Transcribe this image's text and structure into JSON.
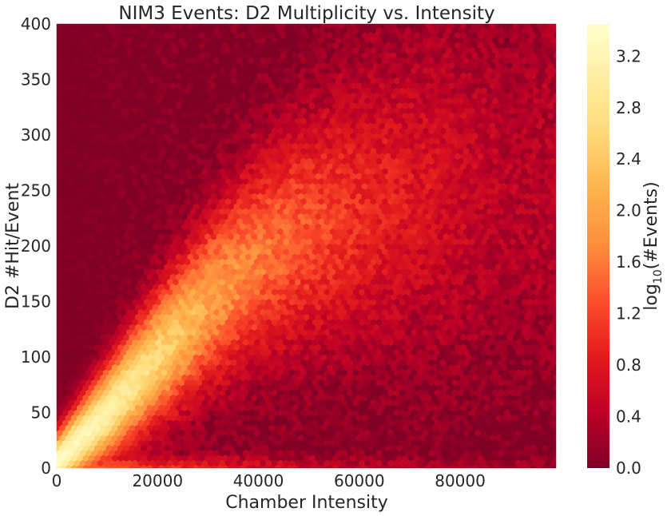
{
  "chart_data": {
    "type": "heatmap",
    "subtype": "hexbin",
    "title": "NIM3 Events: D2 Multiplicity vs. Intensity",
    "xlabel": "Chamber Intensity",
    "ylabel": "D2 #Hit/Event",
    "xlim": [
      0,
      99000
    ],
    "ylim": [
      0,
      400
    ],
    "x_ticks": [
      "0",
      "20000",
      "40000",
      "60000",
      "80000"
    ],
    "x_tick_values": [
      0,
      20000,
      40000,
      60000,
      80000
    ],
    "y_ticks": [
      "0",
      "50",
      "100",
      "150",
      "200",
      "250",
      "300",
      "350",
      "400"
    ],
    "y_tick_values": [
      0,
      50,
      100,
      150,
      200,
      250,
      300,
      350,
      400
    ],
    "grid": false,
    "colormap": "YlOrRd_r",
    "colorbar": {
      "label_main": "log",
      "label_sub": "10",
      "label_rest": "(#Events)",
      "range": [
        0.0,
        3.45
      ],
      "ticks": [
        "0.0",
        "0.4",
        "0.8",
        "1.2",
        "1.6",
        "2.0",
        "2.4",
        "2.8",
        "3.2"
      ],
      "tick_values": [
        0.0,
        0.4,
        0.8,
        1.2,
        1.6,
        2.0,
        2.4,
        2.8,
        3.2
      ]
    },
    "density_ridge": {
      "description_x": [
        0,
        10000,
        20000,
        30000,
        40000,
        50000,
        60000,
        70000,
        80000,
        90000
      ],
      "peak_y": [
        5,
        50,
        100,
        150,
        190,
        215,
        230,
        245,
        255,
        260
      ],
      "peak_log10_events": [
        3.4,
        3.1,
        2.6,
        2.0,
        1.6,
        1.3,
        1.0,
        0.8,
        0.6,
        0.4
      ]
    },
    "colors": {
      "stops": [
        "#800026",
        "#bd0026",
        "#e31a1c",
        "#fc4e2a",
        "#fd8d3c",
        "#feb24c",
        "#fed976",
        "#ffeda0",
        "#ffffcc"
      ]
    }
  }
}
